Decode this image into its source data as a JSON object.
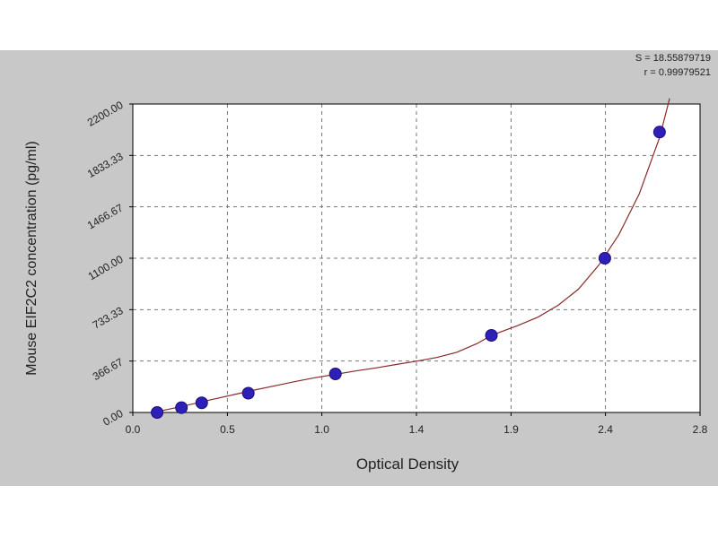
{
  "stats": {
    "s": "S = 18.55879719",
    "r": "r = 0.99979521"
  },
  "chart_data": {
    "type": "scatter",
    "title": "",
    "xlabel": "Optical Density",
    "ylabel": "Mouse EIF2C2 concentration (pg/ml)",
    "xlim": [
      0,
      2.8
    ],
    "ylim": [
      0,
      2200
    ],
    "x_ticks": [
      "0.0",
      "0.5",
      "1.0",
      "1.4",
      "1.9",
      "2.4",
      "2.8"
    ],
    "x_tick_values": [
      0.0,
      0.467,
      0.933,
      1.4,
      1.867,
      2.333,
      2.8
    ],
    "y_ticks": [
      "0.00",
      "366.67",
      "733.33",
      "1100.00",
      "1466.67",
      "1833.33",
      "2200.00"
    ],
    "y_tick_values": [
      0,
      366.67,
      733.33,
      1100,
      1466.67,
      1833.33,
      2200
    ],
    "grid": true,
    "series": [
      {
        "points": [
          {
            "x": 0.12,
            "y": 0
          },
          {
            "x": 0.24,
            "y": 34.4
          },
          {
            "x": 0.34,
            "y": 68.8
          },
          {
            "x": 0.57,
            "y": 137.5
          },
          {
            "x": 1.0,
            "y": 275
          },
          {
            "x": 1.77,
            "y": 550
          },
          {
            "x": 2.33,
            "y": 1100
          },
          {
            "x": 2.6,
            "y": 2000
          }
        ],
        "color": "#2d1fb8"
      }
    ],
    "curve": {
      "color": "#8b2a2a",
      "points": [
        [
          0.1,
          0
        ],
        [
          0.2,
          30
        ],
        [
          0.3,
          62
        ],
        [
          0.4,
          95
        ],
        [
          0.5,
          128
        ],
        [
          0.6,
          160
        ],
        [
          0.7,
          190
        ],
        [
          0.8,
          220
        ],
        [
          0.9,
          248
        ],
        [
          1.0,
          272
        ],
        [
          1.1,
          296
        ],
        [
          1.2,
          318
        ],
        [
          1.3,
          342
        ],
        [
          1.4,
          366
        ],
        [
          1.5,
          392
        ],
        [
          1.6,
          430
        ],
        [
          1.7,
          492
        ],
        [
          1.77,
          550
        ],
        [
          1.9,
          620
        ],
        [
          2.0,
          680
        ],
        [
          2.1,
          765
        ],
        [
          2.2,
          880
        ],
        [
          2.3,
          1050
        ],
        [
          2.4,
          1270
        ],
        [
          2.5,
          1560
        ],
        [
          2.6,
          1960
        ],
        [
          2.65,
          2240
        ]
      ]
    }
  }
}
